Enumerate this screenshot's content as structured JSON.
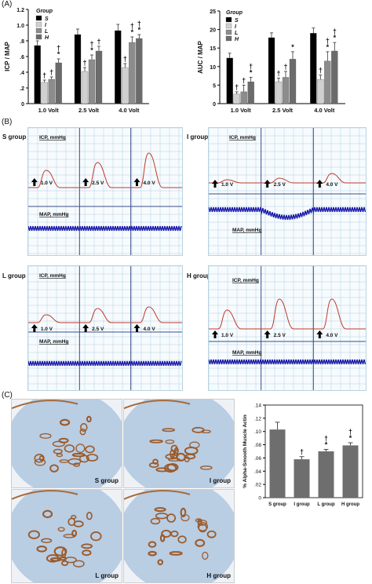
{
  "panels": {
    "A": "(A)",
    "B": "(B)",
    "C": "(C)"
  },
  "colors": {
    "S": "#000000",
    "I": "#d0d0d0",
    "L": "#8c8c8c",
    "H": "#6b6b6b",
    "trace_icp": "#c0392b",
    "trace_map": "#1a1aa8",
    "grid": "#9fc8de",
    "bar_c": "#6e6e6e"
  },
  "chart_data": [
    {
      "type": "bar",
      "ylabel": "ICP / MAP",
      "legend_title": "Group",
      "categories": [
        "1.0 Volt",
        "2.5 Volt",
        "4.0 Volt"
      ],
      "ylim": [
        0,
        1.2
      ],
      "yticks": [
        "0",
        ".2",
        ".4",
        ".6",
        ".8",
        "1.0",
        "1.2"
      ],
      "series": [
        {
          "name": "S",
          "values": [
            0.74,
            0.88,
            0.93
          ],
          "errors": [
            0.06,
            0.07,
            0.08
          ]
        },
        {
          "name": "I",
          "values": [
            0.27,
            0.41,
            0.46
          ],
          "errors": [
            0.03,
            0.05,
            0.05
          ]
        },
        {
          "name": "L",
          "values": [
            0.31,
            0.56,
            0.78
          ],
          "errors": [
            0.03,
            0.06,
            0.07
          ]
        },
        {
          "name": "H",
          "values": [
            0.52,
            0.67,
            0.83
          ],
          "errors": [
            0.05,
            0.06,
            0.05
          ]
        }
      ],
      "annotations": [
        [
          "",
          "†",
          "†",
          "†*"
        ],
        [
          "",
          "†",
          "†*",
          "†"
        ],
        [
          "",
          "†",
          "†*",
          "†*"
        ]
      ]
    },
    {
      "type": "bar",
      "ylabel": "AUC / MAP",
      "legend_title": "Group",
      "categories": [
        "1.0 Volt",
        "2.5 Volt",
        "4.0 Volt"
      ],
      "ylim": [
        0,
        25
      ],
      "yticks": [
        "0",
        "5",
        "10",
        "15",
        "20",
        "25"
      ],
      "series": [
        {
          "name": "S",
          "values": [
            12.3,
            17.8,
            19.0
          ],
          "errors": [
            1.3,
            1.3,
            1.4
          ]
        },
        {
          "name": "I",
          "values": [
            2.6,
            5.9,
            6.5
          ],
          "errors": [
            0.6,
            1.0,
            1.2
          ]
        },
        {
          "name": "L",
          "values": [
            3.2,
            7.1,
            11.5
          ],
          "errors": [
            1.8,
            1.6,
            2.5
          ]
        },
        {
          "name": "H",
          "values": [
            5.9,
            12.0,
            14.2
          ],
          "errors": [
            1.2,
            2.0,
            2.3
          ]
        }
      ],
      "annotations": [
        [
          "",
          "†",
          "†",
          "†*"
        ],
        [
          "",
          "†",
          "†",
          "*"
        ],
        [
          "",
          "†",
          "†*",
          "†*"
        ]
      ]
    },
    {
      "type": "bar",
      "ylabel": "% Alpha-Smooth Muscle Actin",
      "categories": [
        "S group",
        "I group",
        "L group",
        "H group"
      ],
      "ylim": [
        0,
        0.14
      ],
      "yticks": [
        "0",
        ".02",
        ".04",
        ".06",
        ".08",
        ".10",
        ".12",
        ".14"
      ],
      "values": [
        0.103,
        0.058,
        0.07,
        0.079
      ],
      "errors": [
        0.011,
        0.004,
        0.003,
        0.004
      ],
      "annotations": [
        "",
        "†",
        "†*",
        "†*"
      ]
    }
  ],
  "recordings": [
    {
      "group": "S group",
      "icp_label": "ICP, mmHg",
      "map_label": "MAP, mmHg",
      "volts": [
        "1.0 V",
        "2.5 V",
        "4.0 V"
      ]
    },
    {
      "group": "I group",
      "icp_label": "ICP, mmHg",
      "map_label": "MAP, mmHg",
      "volts": [
        "1.0 V",
        "2.5 V",
        "4.0 V"
      ]
    },
    {
      "group": "L group",
      "icp_label": "ICP, mmHg",
      "map_label": "MAP, mmHg",
      "volts": [
        "1.0 V",
        "2.5 V",
        "4.0 V"
      ]
    },
    {
      "group": "H group",
      "icp_label": "ICP, mmHg",
      "map_label": "MAP, mmHg",
      "volts": [
        "1.0 V",
        "2.5 V",
        "4.0 V"
      ]
    }
  ],
  "histology": [
    {
      "label": "S group"
    },
    {
      "label": "I group"
    },
    {
      "label": "L group"
    },
    {
      "label": "H group"
    }
  ]
}
